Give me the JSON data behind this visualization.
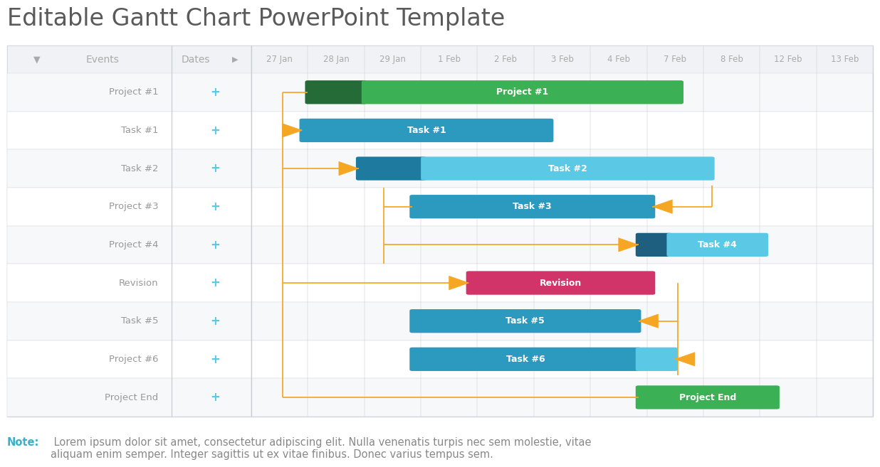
{
  "title": "Editable Gantt Chart PowerPoint Template",
  "title_color": "#5a5a5a",
  "title_fontsize": 24,
  "bg_color": "#ffffff",
  "header_bg": "#f0f2f5",
  "grid_color": "#d0d5db",
  "col_line_color": "#c8cdd4",
  "date_labels": [
    "27 Jan",
    "28 Jan",
    "29 Jan",
    "1 Feb",
    "2 Feb",
    "3 Feb",
    "4 Feb",
    "7 Feb",
    "8 Feb",
    "12 Feb",
    "13 Feb"
  ],
  "row_labels": [
    "Project #1",
    "Task #1",
    "Task #2",
    "Project #3",
    "Project #4",
    "Revision",
    "Task #5",
    "Project #6",
    "Project End"
  ],
  "bars_data": [
    [
      0,
      1.0,
      2.0,
      "#256b38",
      ""
    ],
    [
      0,
      2.0,
      7.6,
      "#3cb054",
      "Project #1"
    ],
    [
      1,
      0.9,
      5.3,
      "#2c9abf",
      "Task #1"
    ],
    [
      2,
      1.9,
      3.05,
      "#1e7a9e",
      ""
    ],
    [
      2,
      3.05,
      8.15,
      "#5bc8e6",
      "Task #2"
    ],
    [
      3,
      2.85,
      7.1,
      "#2c9abf",
      "Task #3"
    ],
    [
      4,
      6.85,
      7.4,
      "#1e5f80",
      ""
    ],
    [
      4,
      7.4,
      9.1,
      "#5bc8e6",
      "Task #4"
    ],
    [
      5,
      3.85,
      7.1,
      "#d03468",
      "Revision"
    ],
    [
      6,
      2.85,
      6.85,
      "#2c9abf",
      "Task #5"
    ],
    [
      7,
      2.85,
      6.85,
      "#2c9abf",
      "Task #6"
    ],
    [
      7,
      6.85,
      7.5,
      "#5bc8e6",
      ""
    ],
    [
      8,
      6.85,
      9.3,
      "#3cb054",
      "Project End"
    ]
  ],
  "connector_color": "#f5a623",
  "label_color": "#999999",
  "plus_color": "#5bc8e6",
  "note_label": "Note:",
  "note_label_color": "#3cb0c8",
  "note_text": " Lorem ipsum dolor sit amet, consectetur adipiscing elit. Nulla venenatis turpis nec sem molestie, vitae\naliquam enim semper. Integer sagittis ut ex vitae finibus. Donec varius tempus sem.",
  "note_color": "#888888",
  "note_fontsize": 10.5
}
